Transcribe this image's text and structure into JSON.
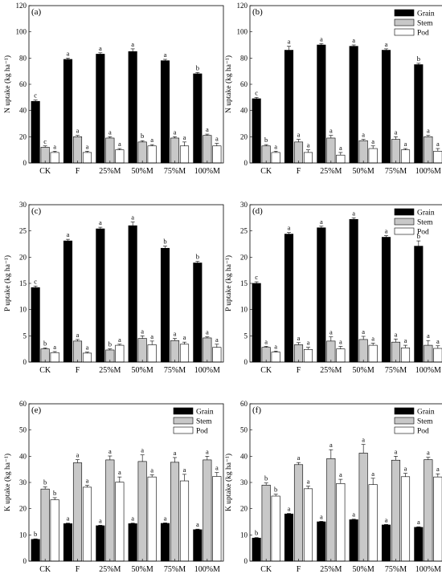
{
  "figure": {
    "legend_labels": [
      "Grain",
      "Stem",
      "Pod"
    ],
    "colors": {
      "Grain": "#000000",
      "Stem": "#c8c8c8",
      "Pod": "#ffffff"
    }
  },
  "chart_data": [
    {
      "panel_label": "(a)",
      "type": "bar",
      "categories": [
        "CK",
        "F",
        "25%M",
        "50%M",
        "75%M",
        "100%M"
      ],
      "ylabel": "N uptake (kg ha⁻¹)",
      "ylim": [
        0,
        120
      ],
      "yticks": [
        0,
        20,
        40,
        60,
        80,
        100,
        120
      ],
      "legend": false,
      "series": [
        {
          "name": "Grain",
          "values": [
            47,
            79,
            83,
            85,
            78,
            68
          ],
          "errors": [
            1,
            1,
            1,
            2,
            1,
            1
          ],
          "letters": [
            "c",
            "a",
            "a",
            "a",
            "a",
            "b"
          ]
        },
        {
          "name": "Stem",
          "values": [
            12,
            20,
            19,
            16,
            19,
            21
          ],
          "errors": [
            1,
            1,
            1,
            1,
            1,
            1
          ],
          "letters": [
            "c",
            "a",
            "a",
            "b",
            "a",
            "a"
          ]
        },
        {
          "name": "Pod",
          "values": [
            8,
            8,
            10,
            13,
            13,
            13
          ],
          "errors": [
            1,
            1,
            1,
            1,
            3,
            2
          ],
          "letters": [
            "a",
            "a",
            "a",
            "a",
            "a",
            "a"
          ]
        }
      ]
    },
    {
      "panel_label": "(b)",
      "type": "bar",
      "categories": [
        "CK",
        "F",
        "25%M",
        "50%M",
        "75%M",
        "100%M"
      ],
      "ylabel": "N uptake (kg ha⁻¹)",
      "ylim": [
        0,
        120
      ],
      "yticks": [
        0,
        20,
        40,
        60,
        80,
        100,
        120
      ],
      "legend": true,
      "series": [
        {
          "name": "Grain",
          "values": [
            49,
            86,
            90,
            89,
            86,
            75
          ],
          "errors": [
            1,
            3,
            1,
            1,
            1,
            1
          ],
          "letters": [
            "c",
            "a",
            "a",
            "a",
            "a",
            "b"
          ]
        },
        {
          "name": "Stem",
          "values": [
            13,
            16,
            19,
            17,
            18,
            20
          ],
          "errors": [
            1,
            2,
            2,
            1,
            2,
            1
          ],
          "letters": [
            "b",
            "a",
            "a",
            "a",
            "a",
            "a"
          ]
        },
        {
          "name": "Pod",
          "values": [
            8,
            8,
            6,
            11,
            10,
            9
          ],
          "errors": [
            1,
            2,
            2,
            2,
            1,
            2
          ],
          "letters": [
            "a",
            "a",
            "a",
            "a",
            "a",
            "a"
          ]
        }
      ]
    },
    {
      "panel_label": "(c)",
      "type": "bar",
      "categories": [
        "CK",
        "F",
        "25%M",
        "50%M",
        "75%M",
        "100%M"
      ],
      "ylabel": "P uptake (kg ha⁻¹)",
      "ylim": [
        0,
        30
      ],
      "yticks": [
        0,
        5,
        10,
        15,
        20,
        25,
        30
      ],
      "legend": false,
      "series": [
        {
          "name": "Grain",
          "values": [
            14.2,
            23.1,
            25.4,
            26.0,
            21.7,
            18.9
          ],
          "errors": [
            0.3,
            0.3,
            0.3,
            0.7,
            0.4,
            0.3
          ],
          "letters": [
            "c",
            "a",
            "a",
            "a",
            "b",
            "b"
          ]
        },
        {
          "name": "Stem",
          "values": [
            2.5,
            4.0,
            2.3,
            4.5,
            4.1,
            4.6
          ],
          "errors": [
            0.2,
            0.3,
            0.2,
            0.5,
            0.4,
            0.2
          ],
          "letters": [
            "b",
            "a",
            "b",
            "a",
            "a",
            "a"
          ]
        },
        {
          "name": "Pod",
          "values": [
            1.8,
            1.7,
            3.2,
            3.3,
            3.4,
            2.8
          ],
          "errors": [
            0.2,
            0.2,
            0.2,
            0.7,
            0.4,
            0.6
          ],
          "letters": [
            "a",
            "a",
            "a",
            "a",
            "a",
            "a"
          ]
        }
      ]
    },
    {
      "panel_label": "(d)",
      "type": "bar",
      "categories": [
        "CK",
        "F",
        "25%M",
        "50%M",
        "75%M",
        "100%M"
      ],
      "ylabel": "P uptake (kg ha⁻¹)",
      "ylim": [
        0,
        30
      ],
      "yticks": [
        0,
        5,
        10,
        15,
        20,
        25,
        30
      ],
      "legend": true,
      "series": [
        {
          "name": "Grain",
          "values": [
            15.0,
            24.4,
            25.6,
            27.2,
            23.8,
            22.1
          ],
          "errors": [
            0.3,
            0.3,
            0.3,
            0.3,
            0.3,
            1.0
          ],
          "letters": [
            "c",
            "a",
            "a",
            "a",
            "a",
            "b"
          ]
        },
        {
          "name": "Stem",
          "values": [
            2.8,
            3.3,
            4.0,
            4.3,
            3.8,
            3.2
          ],
          "errors": [
            0.2,
            0.4,
            0.8,
            0.6,
            0.6,
            0.9
          ],
          "letters": [
            "a",
            "a",
            "a",
            "a",
            "a",
            "a"
          ]
        },
        {
          "name": "Pod",
          "values": [
            1.9,
            2.4,
            2.5,
            3.2,
            2.7,
            2.6
          ],
          "errors": [
            0.2,
            0.4,
            0.5,
            0.4,
            0.5,
            0.5
          ],
          "letters": [
            "a",
            "a",
            "a",
            "a",
            "a",
            "a"
          ]
        }
      ]
    },
    {
      "panel_label": "(e)",
      "type": "bar",
      "categories": [
        "CK",
        "F",
        "25%M",
        "50%M",
        "75%M",
        "100%M"
      ],
      "ylabel": "K uptake (kg ha⁻¹)",
      "ylim": [
        0,
        60
      ],
      "yticks": [
        0,
        10,
        20,
        30,
        40,
        50,
        60
      ],
      "legend": true,
      "series": [
        {
          "name": "Grain",
          "values": [
            8.3,
            14.3,
            13.5,
            14.3,
            14.4,
            12.0
          ],
          "errors": [
            0.2,
            0.2,
            0.2,
            0.2,
            0.2,
            0.2
          ],
          "letters": [
            "b",
            "a",
            "a",
            "a",
            "a",
            "a"
          ]
        },
        {
          "name": "Stem",
          "values": [
            27.5,
            37.5,
            38.6,
            38.0,
            37.7,
            38.6
          ],
          "errors": [
            0.8,
            1.2,
            1.5,
            2.5,
            1.8,
            1.4
          ],
          "letters": [
            "b",
            "a",
            "a",
            "a",
            "a",
            "a"
          ]
        },
        {
          "name": "Pod",
          "values": [
            23.4,
            28.2,
            30.1,
            32.1,
            30.6,
            32.3
          ],
          "errors": [
            0.8,
            0.7,
            2.0,
            0.8,
            2.5,
            1.5
          ],
          "letters": [
            "b",
            "a",
            "a",
            "a",
            "a",
            "a"
          ]
        }
      ]
    },
    {
      "panel_label": "(f)",
      "type": "bar",
      "categories": [
        "CK",
        "F",
        "25%M",
        "50%M",
        "75%M",
        "100%M"
      ],
      "ylabel": "K uptake (kg ha⁻¹)",
      "ylim": [
        0,
        60
      ],
      "yticks": [
        0,
        10,
        20,
        30,
        40,
        50,
        60
      ],
      "legend": true,
      "series": [
        {
          "name": "Grain",
          "values": [
            8.8,
            18.0,
            15.0,
            15.8,
            13.8,
            12.9
          ],
          "errors": [
            0.2,
            0.2,
            0.2,
            0.2,
            0.2,
            0.2
          ],
          "letters": [
            "b",
            "a",
            "a",
            "a",
            "a",
            "a"
          ]
        },
        {
          "name": "Stem",
          "values": [
            29.0,
            36.8,
            39.1,
            41.2,
            38.5,
            38.7
          ],
          "errors": [
            0.8,
            0.8,
            3.4,
            3.3,
            1.5,
            0.9
          ],
          "letters": [
            "b",
            "a",
            "a",
            "a",
            "a",
            "a"
          ]
        },
        {
          "name": "Pod",
          "values": [
            24.8,
            27.6,
            29.6,
            29.2,
            32.2,
            32.1
          ],
          "errors": [
            0.7,
            1.0,
            1.6,
            2.4,
            1.3,
            1.2
          ],
          "letters": [
            "b",
            "a",
            "a",
            "a",
            "a",
            "a"
          ]
        }
      ]
    }
  ]
}
